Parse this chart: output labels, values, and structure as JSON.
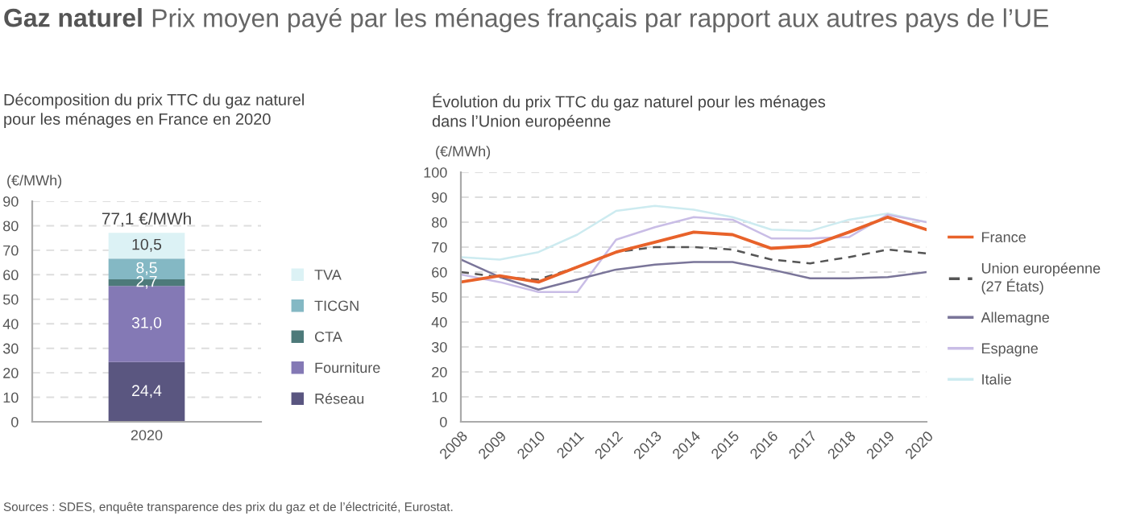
{
  "chart_data": [
    {
      "type": "bar",
      "stacked": true,
      "title": "Décomposition du prix TTC du gaz naturel\npour les ménages en France en 2020",
      "ylabel": "(€/MWh)",
      "categories": [
        "2020"
      ],
      "series": [
        {
          "name": "Réseau",
          "color": "#5a5680",
          "values": [
            24.4
          ],
          "value_labels": [
            "24,4"
          ]
        },
        {
          "name": "Fourniture",
          "color": "#8479b5",
          "values": [
            31.0
          ],
          "value_labels": [
            "31,0"
          ]
        },
        {
          "name": "CTA",
          "color": "#4d7a7a",
          "values": [
            2.7
          ],
          "value_labels": [
            "2,7"
          ]
        },
        {
          "name": "TICGN",
          "color": "#84b8c4",
          "values": [
            8.5
          ],
          "value_labels": [
            "8,5"
          ]
        },
        {
          "name": "TVA",
          "color": "#dcf2f5",
          "values": [
            10.5
          ],
          "value_labels": [
            "10,5"
          ]
        }
      ],
      "totals": [
        "77,1 €/MWh"
      ],
      "ylim": [
        0,
        90
      ],
      "yticks": [
        0,
        10,
        20,
        30,
        40,
        50,
        60,
        70,
        80,
        90
      ],
      "grid": "y",
      "legend": "right",
      "annotations": [
        "Gaz naturel",
        "Prix moyen payé par les ménages français par rapport aux autres pays de l’UE",
        "Sources : SDES, enquête transparence des prix du gaz et de l’électricité, Eurostat."
      ]
    },
    {
      "type": "line",
      "title": "Évolution du prix TTC du gaz naturel pour les ménages\ndans l’Union européenne",
      "ylabel": "(€/MWh)",
      "categories": [
        "2008",
        "2009",
        "2010",
        "2011",
        "2012",
        "2013",
        "2014",
        "2015",
        "2016",
        "2017",
        "2018",
        "2019",
        "2020"
      ],
      "series": [
        {
          "name": "France",
          "color": "#e8622a",
          "values": [
            56,
            58.5,
            56,
            62,
            68,
            72,
            76,
            75,
            69.5,
            70.5,
            76,
            82,
            77
          ]
        },
        {
          "name": "Union européenne\n(27 États)",
          "color": "#555555",
          "line_style": "dashed",
          "values": [
            60,
            58,
            57,
            62,
            68,
            70,
            70,
            69,
            65,
            63.5,
            66,
            69,
            67.5
          ]
        },
        {
          "name": "Allemagne",
          "color": "#7a7599",
          "values": [
            65,
            58,
            53,
            57,
            61,
            63,
            64,
            64,
            61,
            57.5,
            57.5,
            58,
            60
          ]
        },
        {
          "name": "Espagne",
          "color": "#c9bde6",
          "values": [
            59,
            56,
            52,
            52,
            73,
            78,
            82,
            81,
            73.5,
            73.5,
            74,
            83,
            80
          ]
        },
        {
          "name": "Italie",
          "color": "#cdebf0",
          "values": [
            66,
            65,
            68,
            75,
            84.5,
            86.5,
            85,
            82,
            77,
            76.5,
            81,
            83.5,
            80
          ]
        }
      ],
      "ylim": [
        0,
        100
      ],
      "yticks": [
        0,
        10,
        20,
        30,
        40,
        50,
        60,
        70,
        80,
        90,
        100
      ],
      "grid": "y",
      "legend": "right",
      "line_style": "solid",
      "marker": "none"
    }
  ]
}
